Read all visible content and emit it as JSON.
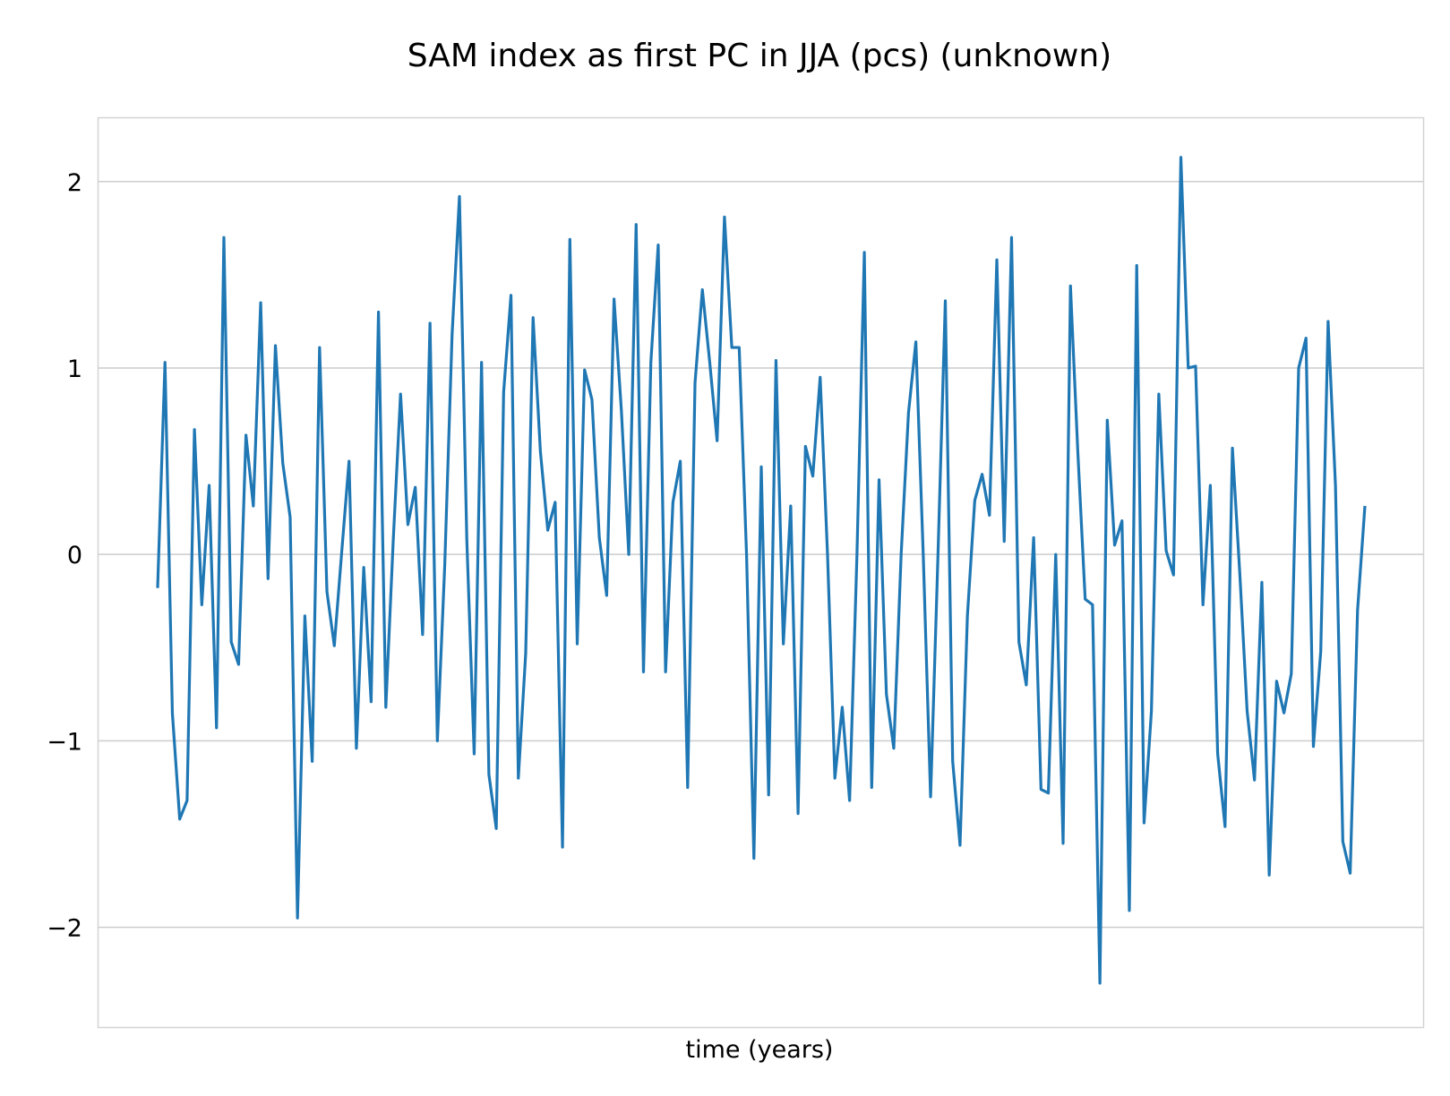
{
  "chart_data": {
    "type": "line",
    "title": "SAM index as first PC in JJA (pcs) (unknown)",
    "xlabel": "time (years)",
    "ylabel": "",
    "ylim": [
      -2.54,
      2.34
    ],
    "y_ticks": [
      2,
      1,
      0,
      -1,
      -2
    ],
    "y_tick_labels": [
      "2",
      "1",
      "0",
      "−1",
      "−2"
    ],
    "x_ticks_shown": false,
    "grid": "horizontal",
    "legend": "none",
    "series": [
      {
        "color": "#1f77b4",
        "values": [
          -0.18,
          1.03,
          -0.85,
          -1.42,
          -1.32,
          0.67,
          -0.27,
          0.37,
          -0.93,
          1.7,
          -0.47,
          -0.59,
          0.64,
          0.26,
          1.35,
          -0.13,
          1.12,
          0.49,
          0.2,
          -1.95,
          -0.33,
          -1.11,
          1.11,
          -0.2,
          -0.49,
          0.01,
          0.5,
          -1.04,
          -0.07,
          -0.79,
          1.3,
          -0.82,
          0.07,
          0.86,
          0.16,
          0.36,
          -0.43,
          1.24,
          -1.0,
          -0.06,
          1.18,
          1.92,
          0.08,
          -1.07,
          1.03,
          -1.18,
          -1.47,
          0.87,
          1.39,
          -1.2,
          -0.53,
          1.27,
          0.55,
          0.13,
          0.28,
          -1.57,
          1.69,
          -0.48,
          0.99,
          0.83,
          0.09,
          -0.22,
          1.37,
          0.77,
          0.0,
          1.77,
          -0.63,
          1.03,
          1.66,
          -0.63,
          0.28,
          0.5,
          -1.25,
          0.92,
          1.42,
          1.03,
          0.61,
          1.81,
          1.11,
          1.11,
          0.0,
          -1.63,
          0.47,
          -1.29,
          1.04,
          -0.48,
          0.26,
          -1.39,
          0.58,
          0.42,
          0.95,
          0.0,
          -1.2,
          -0.82,
          -1.32,
          0.0,
          1.62,
          -1.25,
          0.4,
          -0.75,
          -1.04,
          0.0,
          0.76,
          1.14,
          0.0,
          -1.3,
          -0.01,
          1.36,
          -1.11,
          -1.56,
          -0.33,
          0.29,
          0.43,
          0.21,
          1.58,
          0.07,
          1.7,
          -0.47,
          -0.7,
          0.09,
          -1.26,
          -1.28,
          0.0,
          -1.55,
          1.44,
          0.55,
          -0.24,
          -0.27,
          -2.3,
          0.72,
          0.05,
          0.18,
          -1.91,
          1.55,
          -1.44,
          -0.84,
          0.86,
          0.02,
          -0.11,
          2.13,
          1.0,
          1.01,
          -0.27,
          0.37,
          -1.07,
          -1.46,
          0.57,
          -0.1,
          -0.84,
          -1.21,
          -0.15,
          -1.72,
          -0.68,
          -0.85,
          -0.64,
          1.0,
          1.16,
          -1.03,
          -0.52,
          1.25,
          0.37,
          -1.54,
          -1.71,
          -0.3,
          0.26
        ]
      }
    ]
  }
}
